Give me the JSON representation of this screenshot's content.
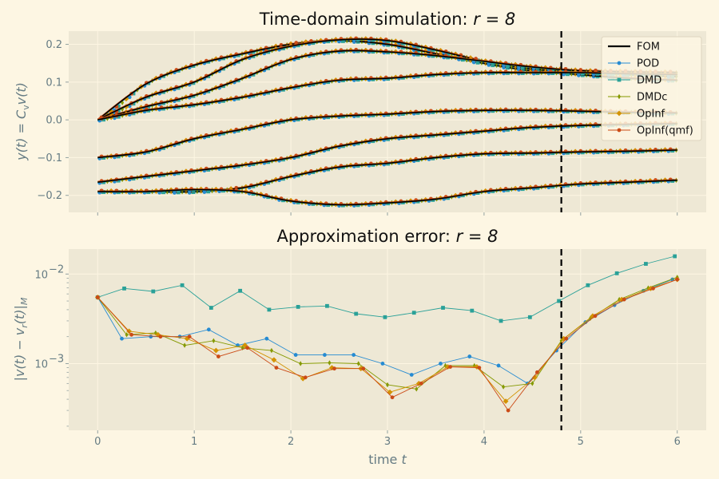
{
  "chart_data": [
    {
      "type": "line",
      "title_prefix": "Time-domain simulation: ",
      "title_math": "r = 8",
      "ylabel_text": "y(t) = C",
      "ylabel_sub": "v",
      "ylabel_tail": "v(t)",
      "xlim": [
        -0.3,
        6.3
      ],
      "ylim": [
        -0.245,
        0.235
      ],
      "yticks": [
        -0.2,
        -0.1,
        0.0,
        0.1,
        0.2
      ],
      "ytick_labels": [
        "−0.2",
        "−0.1",
        "0.0",
        "0.1",
        "0.2"
      ],
      "grid": true,
      "vline_x": 4.8,
      "legend_position": "top-right",
      "legend": [
        "FOM",
        "POD",
        "DMD",
        "DMDc",
        "OpInf",
        "OpInf(qmf)"
      ],
      "colors": {
        "FOM": "#000000",
        "POD": "#268bd2",
        "DMD": "#2aa198",
        "DMDc": "#859900",
        "OpInf": "#d39200",
        "OpInf(qmf)": "#cb4b16"
      },
      "series": [
        {
          "x": [
            0,
            0.5,
            1.0,
            1.5,
            2.0,
            2.5,
            3.0,
            3.5,
            4.0,
            4.5,
            5.0,
            5.5,
            6.0
          ],
          "y": [
            0,
            0.095,
            0.145,
            0.175,
            0.2,
            0.21,
            0.2,
            0.175,
            0.15,
            0.13,
            0.12,
            0.11,
            0.105
          ]
        },
        {
          "x": [
            0,
            0.5,
            1.0,
            1.5,
            2.0,
            2.5,
            3.0,
            3.5,
            4.0,
            4.5,
            5.0,
            5.5,
            6.0
          ],
          "y": [
            0,
            0.06,
            0.1,
            0.16,
            0.195,
            0.212,
            0.21,
            0.185,
            0.155,
            0.135,
            0.125,
            0.12,
            0.115
          ]
        },
        {
          "x": [
            0,
            0.5,
            1.0,
            1.5,
            2.0,
            2.5,
            3.0,
            3.5,
            4.0,
            4.5,
            5.0,
            5.5,
            6.0
          ],
          "y": [
            0,
            0.035,
            0.065,
            0.11,
            0.16,
            0.182,
            0.18,
            0.17,
            0.155,
            0.14,
            0.13,
            0.127,
            0.125
          ]
        },
        {
          "x": [
            0,
            0.5,
            1.0,
            1.5,
            2.0,
            2.5,
            3.0,
            3.5,
            4.0,
            4.5,
            5.0,
            5.5,
            6.0
          ],
          "y": [
            0,
            0.025,
            0.04,
            0.06,
            0.085,
            0.105,
            0.11,
            0.12,
            0.125,
            0.125,
            0.125,
            0.122,
            0.12
          ]
        },
        {
          "x": [
            0,
            0.5,
            1.0,
            1.5,
            2.0,
            2.5,
            3.0,
            3.5,
            4.0,
            4.5,
            5.0,
            5.5,
            6.0
          ],
          "y": [
            -0.1,
            -0.085,
            -0.05,
            -0.025,
            0,
            0.01,
            0.015,
            0.022,
            0.025,
            0.025,
            0.023,
            0.02,
            0.018
          ]
        },
        {
          "x": [
            0,
            0.5,
            1.0,
            1.5,
            2.0,
            2.5,
            3.0,
            3.5,
            4.0,
            4.5,
            5.0,
            5.5,
            6.0
          ],
          "y": [
            -0.165,
            -0.15,
            -0.135,
            -0.12,
            -0.1,
            -0.07,
            -0.05,
            -0.04,
            -0.03,
            -0.02,
            -0.015,
            -0.012,
            -0.01
          ]
        },
        {
          "x": [
            0,
            0.5,
            1.0,
            1.5,
            2.0,
            2.5,
            3.0,
            3.5,
            4.0,
            4.5,
            5.0,
            5.5,
            6.0
          ],
          "y": [
            -0.19,
            -0.19,
            -0.19,
            -0.18,
            -0.15,
            -0.125,
            -0.115,
            -0.1,
            -0.09,
            -0.088,
            -0.085,
            -0.083,
            -0.08
          ]
        },
        {
          "x": [
            0,
            0.5,
            1.0,
            1.5,
            2.0,
            2.5,
            3.0,
            3.5,
            4.0,
            4.5,
            5.0,
            5.5,
            6.0
          ],
          "y": [
            -0.19,
            -0.19,
            -0.185,
            -0.19,
            -0.215,
            -0.225,
            -0.22,
            -0.21,
            -0.19,
            -0.18,
            -0.17,
            -0.165,
            -0.16
          ]
        }
      ]
    },
    {
      "type": "line",
      "title_prefix": "Approximation error: ",
      "title_math": "r = 8",
      "ylabel_text": "|v(t) − v",
      "ylabel_sub": "r",
      "ylabel_tail": "(t)|",
      "ylabel_sub2": "M",
      "xlabel_text": "time ",
      "xlabel_math": "t",
      "yscale": "log",
      "xlim": [
        -0.3,
        6.3
      ],
      "ylim": [
        0.00018,
        0.019
      ],
      "xticks": [
        0,
        1,
        2,
        3,
        4,
        5,
        6
      ],
      "xtick_labels": [
        "0",
        "1",
        "2",
        "3",
        "4",
        "5",
        "6"
      ],
      "ytick_base": "10",
      "ytick_exponents": [
        "−3",
        "−2"
      ],
      "grid": true,
      "vline_x": 4.8,
      "series": [
        {
          "name": "POD",
          "x": [
            0,
            0.3,
            0.6,
            0.9,
            1.2,
            1.5,
            1.8,
            2.1,
            2.4,
            2.7,
            3.0,
            3.3,
            3.6,
            3.9,
            4.2,
            4.5,
            4.8,
            5.1,
            5.4,
            5.7,
            6.0
          ],
          "y": [
            0.0055,
            0.0019,
            0.002,
            0.002,
            0.0024,
            0.0016,
            0.0019,
            0.00125,
            0.00125,
            0.00125,
            0.001,
            0.00075,
            0.001,
            0.0012,
            0.00095,
            0.0006,
            0.0014,
            0.0029,
            0.0045,
            0.0065,
            0.0087
          ]
        },
        {
          "name": "DMD",
          "x": [
            0,
            0.3,
            0.6,
            0.9,
            1.2,
            1.5,
            1.8,
            2.1,
            2.4,
            2.7,
            3.0,
            3.3,
            3.6,
            3.9,
            4.2,
            4.5,
            4.8,
            5.1,
            5.4,
            5.7,
            6.0
          ],
          "y": [
            0.0055,
            0.0069,
            0.0064,
            0.0075,
            0.0042,
            0.0065,
            0.004,
            0.0043,
            0.0044,
            0.0036,
            0.0033,
            0.0037,
            0.0042,
            0.0039,
            0.003,
            0.0033,
            0.005,
            0.0075,
            0.0102,
            0.013,
            0.0158
          ]
        },
        {
          "name": "DMDc",
          "x": [
            0,
            0.3,
            0.6,
            0.9,
            1.2,
            1.5,
            1.8,
            2.1,
            2.4,
            2.7,
            3.0,
            3.3,
            3.6,
            3.9,
            4.2,
            4.5,
            4.8,
            5.1,
            5.4,
            5.7,
            6.0
          ],
          "y": [
            0.0055,
            0.0021,
            0.0022,
            0.0016,
            0.0018,
            0.0015,
            0.0014,
            0.001,
            0.00102,
            0.001,
            0.00058,
            0.00052,
            0.00095,
            0.00095,
            0.00055,
            0.0006,
            0.0018,
            0.0032,
            0.0052,
            0.007,
            0.0092
          ]
        },
        {
          "name": "OpInf",
          "x": [
            0,
            0.3,
            0.6,
            0.9,
            1.2,
            1.5,
            1.8,
            2.1,
            2.4,
            2.7,
            3.0,
            3.3,
            3.6,
            3.9,
            4.2,
            4.5,
            4.8,
            5.1,
            5.4,
            5.7,
            6.0
          ],
          "y": [
            0.0055,
            0.0023,
            0.0021,
            0.0019,
            0.0014,
            0.0016,
            0.0011,
            0.00068,
            0.0009,
            0.00088,
            0.00048,
            0.0006,
            0.00092,
            0.00092,
            0.00038,
            0.0007,
            0.0019,
            0.0034,
            0.0052,
            0.0069,
            0.0087
          ]
        },
        {
          "name": "OpInf(qmf)",
          "x": [
            0,
            0.3,
            0.6,
            0.9,
            1.2,
            1.5,
            1.8,
            2.1,
            2.4,
            2.7,
            3.0,
            3.3,
            3.6,
            3.9,
            4.2,
            4.5,
            4.8,
            5.1,
            5.4,
            5.7,
            6.0
          ],
          "y": [
            0.0055,
            0.0021,
            0.002,
            0.002,
            0.0012,
            0.0015,
            0.0009,
            0.0007,
            0.00088,
            0.00088,
            0.00042,
            0.0006,
            0.00092,
            0.0009,
            0.0003,
            0.0008,
            0.0019,
            0.0034,
            0.0052,
            0.0069,
            0.0087
          ]
        }
      ]
    }
  ]
}
